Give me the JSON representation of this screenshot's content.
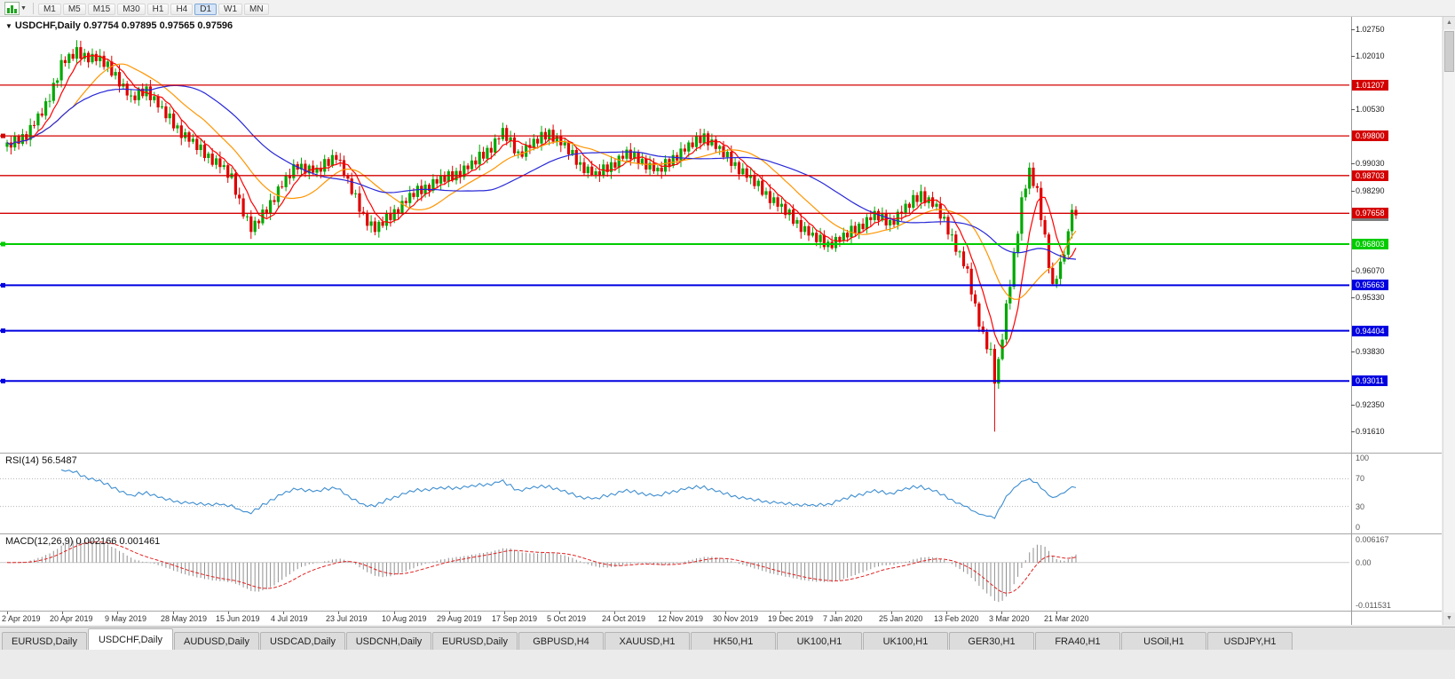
{
  "toolbar": {
    "timeframes": [
      "M1",
      "M5",
      "M15",
      "M30",
      "H1",
      "H4",
      "D1",
      "W1",
      "MN"
    ],
    "active_timeframe": "D1"
  },
  "chart_header": {
    "title": "USDCHF,Daily",
    "ohlc": "0.97754 0.97895 0.97565 0.97596"
  },
  "rsi": {
    "name": "RSI(14)",
    "value": "56.5487",
    "period": 14,
    "ticks": [
      "100",
      "70",
      "30",
      "0"
    ],
    "upper": 70,
    "lower": 30,
    "color": "#3e8ed0"
  },
  "macd": {
    "name": "MACD(12,26,9)",
    "values": "0.002166 0.001461",
    "fast": 12,
    "slow": 26,
    "signal": 9,
    "ticks": [
      {
        "label": "0.006167",
        "value": 0.006167
      },
      {
        "label": "0.00",
        "value": 0.0
      },
      {
        "label": "-0.011531",
        "value": -0.011531
      }
    ],
    "max": 0.006167,
    "min": -0.011531,
    "histogram_color": "#909090",
    "signal_color": "#e02020"
  },
  "tabs": {
    "items": [
      "EURUSD,Daily",
      "USDCHF,Daily",
      "AUDUSD,Daily",
      "USDCAD,Daily",
      "USDCNH,Daily",
      "EURUSD,Daily",
      "GBPUSD,H4",
      "XAUUSD,H1",
      "HK50,H1",
      "UK100,H1",
      "UK100,H1",
      "GER30,H1",
      "FRA40,H1",
      "USOil,H1",
      "USDJPY,H1"
    ],
    "active_index": 1
  },
  "chart_data": {
    "type": "candlestick",
    "symbol": "USDCHF",
    "timeframe": "Daily",
    "last_candle": {
      "open": 0.97754,
      "high": 0.97895,
      "low": 0.97565,
      "close": 0.97596
    },
    "up_color": "#00a800",
    "down_color": "#e00000",
    "first_open": 0.995,
    "closes": [
      0.9962,
      0.9948,
      0.998,
      0.9958,
      0.9985,
      0.9969,
      1.001,
      1.0009,
      1.0042,
      1.0036,
      1.0076,
      1.0077,
      1.0127,
      1.0134,
      1.019,
      1.0182,
      1.0207,
      1.0194,
      1.0226,
      1.0194,
      1.021,
      1.0184,
      1.0207,
      1.0187,
      1.0202,
      1.0171,
      1.0186,
      1.0147,
      1.0157,
      1.0117,
      1.0125,
      1.0092,
      1.0092,
      1.0079,
      1.0111,
      1.009,
      1.0117,
      1.0079,
      1.009,
      1.0059,
      1.0062,
      1.0029,
      1.0042,
      1.0001,
      1.0009,
      0.9974,
      0.999,
      0.9964,
      0.9972,
      0.9941,
      0.9956,
      0.9919,
      0.9931,
      0.99,
      0.9918,
      0.9894,
      0.9899,
      0.9864,
      0.9876,
      0.9817,
      0.9807,
      0.9757,
      0.9757,
      0.9714,
      0.9745,
      0.9738,
      0.9776,
      0.9765,
      0.9802,
      0.9797,
      0.984,
      0.9838,
      0.987,
      0.9863,
      0.9902,
      0.9887,
      0.9903,
      0.9876,
      0.9898,
      0.9878,
      0.9892,
      0.9881,
      0.9916,
      0.9897,
      0.9927,
      0.9914,
      0.9913,
      0.9871,
      0.9862,
      0.9819,
      0.9821,
      0.977,
      0.9767,
      0.9731,
      0.9743,
      0.9714,
      0.9742,
      0.9731,
      0.9766,
      0.9747,
      0.9777,
      0.9764,
      0.98,
      0.9794,
      0.9822,
      0.9811,
      0.9842,
      0.9819,
      0.9845,
      0.9828,
      0.986,
      0.9848,
      0.987,
      0.9853,
      0.9882,
      0.9857,
      0.9883,
      0.9866,
      0.9898,
      0.9888,
      0.9912,
      0.9901,
      0.9936,
      0.9917,
      0.9947,
      0.9934,
      0.9973,
      0.9971,
      1.0002,
      0.9966,
      0.9976,
      0.9932,
      0.9937,
      0.9922,
      0.9955,
      0.9947,
      0.9972,
      0.9959,
      0.9991,
      0.997,
      0.9997,
      0.9964,
      0.998,
      0.9954,
      0.9962,
      0.9929,
      0.9941,
      0.99,
      0.9907,
      0.9877,
      0.9895,
      0.9872,
      0.9882,
      0.9869,
      0.9901,
      0.988,
      0.9907,
      0.9892,
      0.9925,
      0.9917,
      0.9942,
      0.9916,
      0.9936,
      0.9902,
      0.9917,
      0.9887,
      0.9905,
      0.9882,
      0.9892,
      0.9881,
      0.9916,
      0.9897,
      0.9927,
      0.9912,
      0.9945,
      0.9937,
      0.9962,
      0.9949,
      0.9981,
      0.996,
      0.9987,
      0.9954,
      0.997,
      0.9944,
      0.9952,
      0.9921,
      0.9936,
      0.9897,
      0.9907,
      0.9874,
      0.989,
      0.9864,
      0.9872,
      0.9841,
      0.9856,
      0.9817,
      0.9827,
      0.9794,
      0.981,
      0.9784,
      0.9792,
      0.9761,
      0.9776,
      0.9737,
      0.9747,
      0.9714,
      0.973,
      0.9704,
      0.9712,
      0.9686,
      0.9706,
      0.9672,
      0.9687,
      0.9669,
      0.97,
      0.9689,
      0.9712,
      0.9699,
      0.9731,
      0.971,
      0.9737,
      0.9722,
      0.9755,
      0.9747,
      0.9772,
      0.9746,
      0.9766,
      0.9732,
      0.9747,
      0.9734,
      0.977,
      0.9764,
      0.9792,
      0.9781,
      0.9816,
      0.9797,
      0.9827,
      0.9794,
      0.981,
      0.9784,
      0.9792,
      0.9751,
      0.9756,
      0.9707,
      0.9707,
      0.9659,
      0.966,
      0.9619,
      0.9612,
      0.9541,
      0.9516,
      0.9452,
      0.9437,
      0.9389,
      0.939,
      0.9294,
      0.9362,
      0.9416,
      0.9516,
      0.9562,
      0.9657,
      0.9709,
      0.981,
      0.9834,
      0.9892,
      0.9841,
      0.9836,
      0.9747,
      0.9707,
      0.9614,
      0.957,
      0.9584,
      0.9632,
      0.9651,
      0.9716,
      0.9775,
      0.976
    ],
    "wick_overrides": {
      "18": {
        "high": 1.0245
      },
      "255": {
        "low": 0.9161
      },
      "264": {
        "high": 0.9906
      }
    },
    "moving_averages": [
      {
        "name": "fast",
        "period": 7,
        "color": "#ff0000"
      },
      {
        "name": "medium",
        "period": 18,
        "color": "#ff9500"
      },
      {
        "name": "slow",
        "period": 38,
        "color": "#2828d8"
      }
    ],
    "levels": [
      {
        "price": 1.01207,
        "label": "1.01207",
        "color": "#d40000",
        "width": 1.3,
        "marker": false
      },
      {
        "price": 0.998,
        "label": "0.99800",
        "color": "#d40000",
        "width": 1.3,
        "marker": true
      },
      {
        "price": 0.98703,
        "label": "0.98703",
        "color": "#d40000",
        "width": 1.3,
        "marker": false
      },
      {
        "price": 0.97658,
        "label": "0.97658",
        "color": "#d40000",
        "width": 1.3,
        "marker": false
      },
      {
        "price": 0.96803,
        "label": "0.96803",
        "color": "#00cc00",
        "width": 2,
        "marker": true
      },
      {
        "price": 0.95663,
        "label": "0.95663",
        "color": "#0000e0",
        "width": 2,
        "marker": true
      },
      {
        "price": 0.94404,
        "label": "0.94404",
        "color": "#0000e0",
        "width": 2,
        "marker": true
      },
      {
        "price": 0.93011,
        "label": "0.93011",
        "color": "#0000e0",
        "width": 2,
        "marker": true
      }
    ],
    "current_price": {
      "price": 0.97596,
      "label": "0.97596",
      "color": "#808080"
    },
    "y_ticks": [
      {
        "label": "1.02750",
        "value": 1.0275
      },
      {
        "label": "1.02010",
        "value": 1.0201
      },
      {
        "label": "1.00530",
        "value": 1.0053
      },
      {
        "label": "0.99030",
        "value": 0.9903
      },
      {
        "label": "0.98290",
        "value": 0.9829
      },
      {
        "label": "0.96070",
        "value": 0.9607
      },
      {
        "label": "0.95330",
        "value": 0.9533
      },
      {
        "label": "0.93830",
        "value": 0.9383
      },
      {
        "label": "0.92350",
        "value": 0.9235
      },
      {
        "label": "0.91610",
        "value": 0.9161
      }
    ],
    "x_labels": [
      "2 Apr 2019",
      "20 Apr 2019",
      "9 May 2019",
      "28 May 2019",
      "15 Jun 2019",
      "4 Jul 2019",
      "23 Jul 2019",
      "10 Aug 2019",
      "29 Aug 2019",
      "17 Sep 2019",
      "5 Oct 2019",
      "24 Oct 2019",
      "12 Nov 2019",
      "30 Nov 2019",
      "19 Dec 2019",
      "7 Jan 2020",
      "25 Jan 2020",
      "13 Feb 2020",
      "3 Mar 2020",
      "21 Mar 2020"
    ],
    "price_range": {
      "top": 1.0295,
      "bottom": 0.9115
    }
  }
}
